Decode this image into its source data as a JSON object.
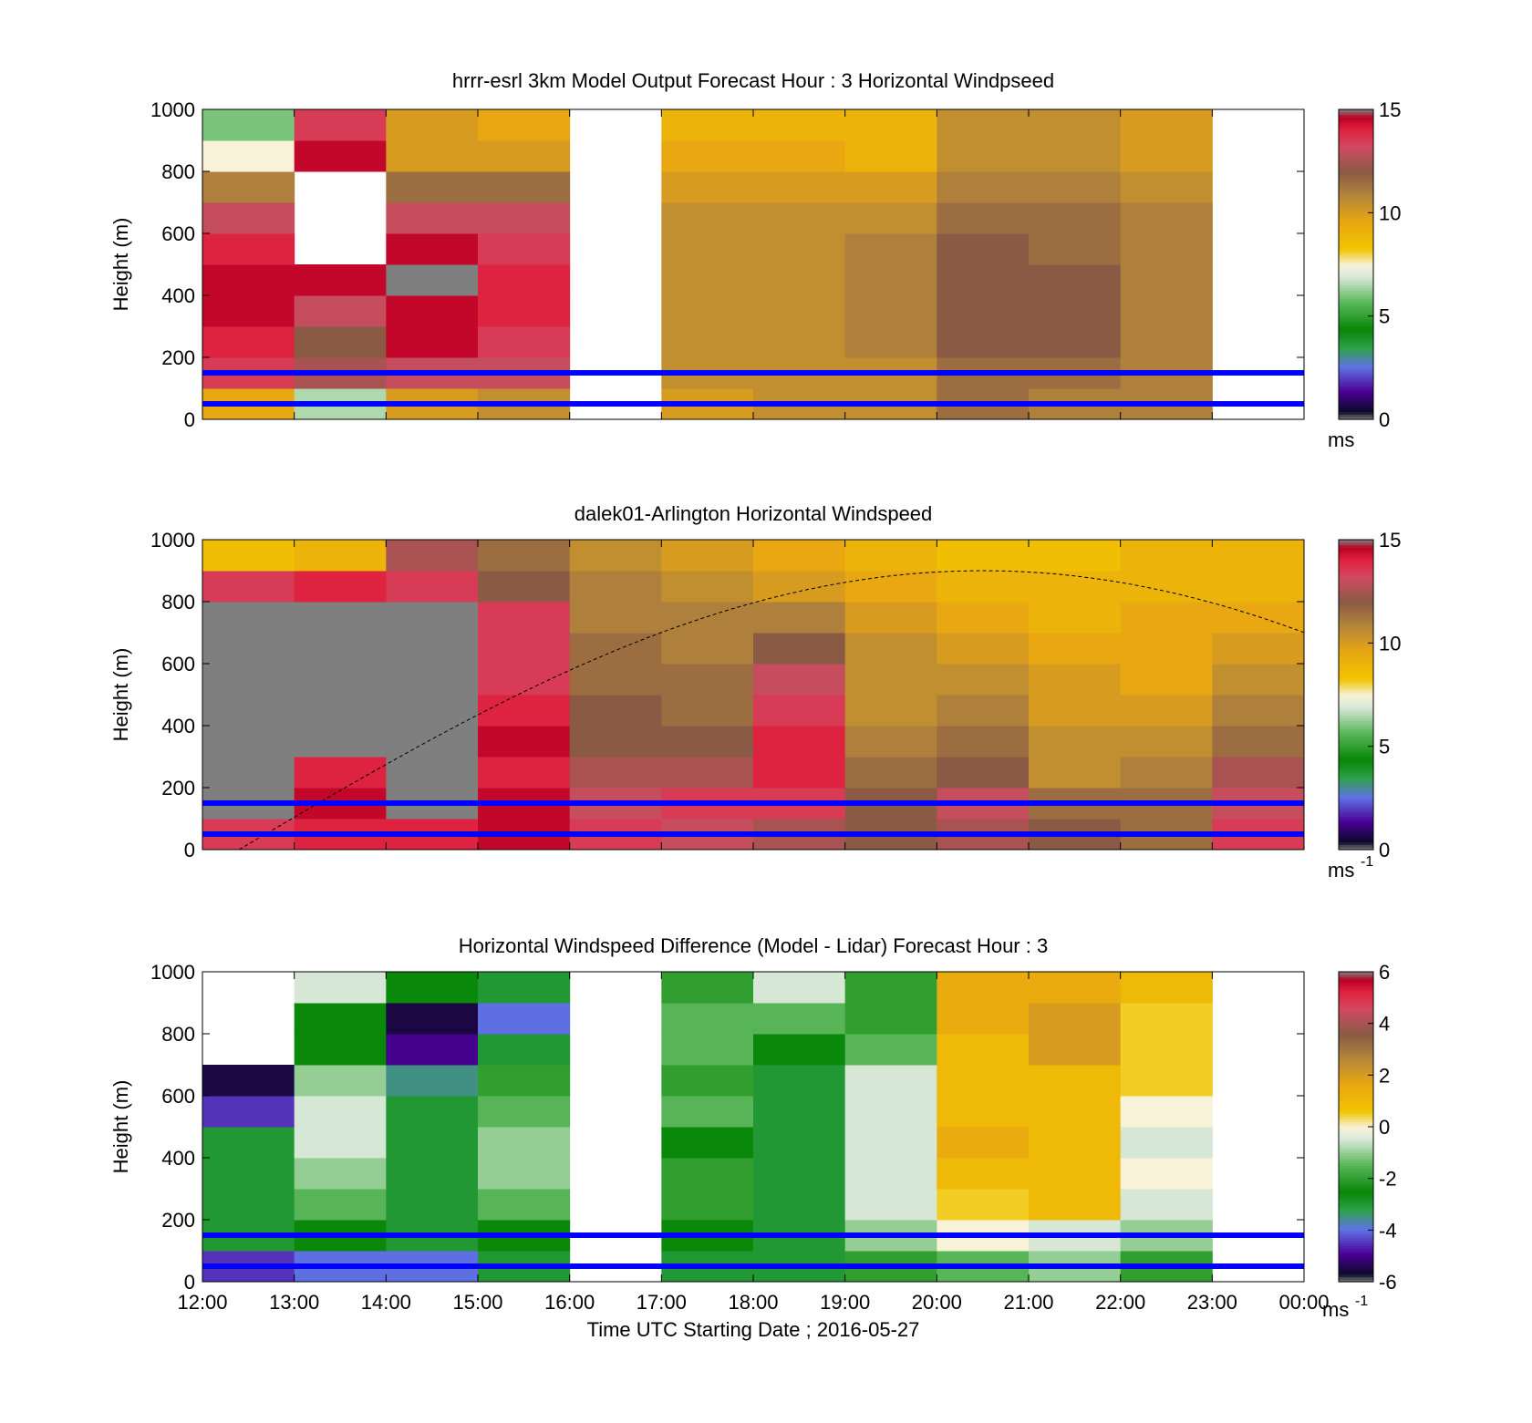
{
  "chart_data": [
    {
      "type": "heatmap",
      "title": "hrrr-esrl 3km Model Output   Forecast Hour : 3 Horizontal Windpseed",
      "ylabel": "Height (m)",
      "ylim": [
        0,
        1000
      ],
      "yticks": [
        "0",
        "200",
        "400",
        "600",
        "800",
        "1000"
      ],
      "xlim": [
        "12:00",
        "00:00"
      ],
      "colorbar": {
        "range": [
          0,
          15
        ],
        "ticks": [
          "0",
          "5",
          "10",
          "15"
        ],
        "unit": "ms"
      },
      "reference_lines_m": [
        50,
        150
      ],
      "heights_m": [
        50,
        150,
        250,
        350,
        450,
        550,
        650,
        750,
        850,
        950
      ],
      "times": [
        "12:00",
        "13:00",
        "14:00",
        "15:00",
        "16:00",
        "17:00",
        "18:00",
        "19:00",
        "20:00",
        "21:00",
        "22:00",
        "23:00"
      ],
      "values": [
        [
          9.5,
          6.5,
          10.0,
          10.5,
          null,
          10.0,
          10.5,
          10.5,
          11.5,
          11.0,
          11.0,
          null
        ],
        [
          13.5,
          12.5,
          13.0,
          13.0,
          null,
          10.5,
          10.5,
          10.5,
          11.5,
          11.5,
          11.0,
          null
        ],
        [
          14.0,
          12.0,
          14.5,
          13.5,
          null,
          10.5,
          10.5,
          11.0,
          12.0,
          12.0,
          11.0,
          null
        ],
        [
          14.5,
          13.0,
          14.5,
          14.0,
          null,
          10.5,
          10.5,
          11.0,
          12.0,
          12.0,
          11.0,
          null
        ],
        [
          14.5,
          14.5,
          15.0,
          14.0,
          null,
          10.5,
          10.5,
          11.0,
          12.0,
          12.0,
          11.0,
          null
        ],
        [
          14.0,
          null,
          14.5,
          13.5,
          null,
          10.5,
          10.5,
          11.0,
          12.0,
          11.5,
          11.0,
          null
        ],
        [
          13.0,
          null,
          13.0,
          13.0,
          null,
          10.5,
          10.5,
          10.5,
          11.5,
          11.5,
          11.0,
          null
        ],
        [
          11.0,
          null,
          11.5,
          11.5,
          null,
          10.0,
          10.0,
          10.0,
          11.0,
          11.0,
          10.5,
          null
        ],
        [
          7.5,
          14.5,
          10.0,
          10.0,
          null,
          9.5,
          9.5,
          9.0,
          10.5,
          10.5,
          10.0,
          null
        ],
        [
          6.0,
          13.5,
          10.0,
          9.5,
          null,
          9.0,
          9.0,
          9.0,
          10.5,
          10.5,
          10.0,
          null
        ]
      ]
    },
    {
      "type": "heatmap",
      "title": "dalek01-Arlington  Horizontal Windspeed",
      "ylabel": "Height (m)",
      "ylim": [
        0,
        1000
      ],
      "yticks": [
        "0",
        "200",
        "400",
        "600",
        "800",
        "1000"
      ],
      "xlim": [
        "12:00",
        "00:00"
      ],
      "colorbar": {
        "range": [
          0,
          15
        ],
        "ticks": [
          "0",
          "5",
          "10",
          "15"
        ],
        "unit": "ms",
        "unit_sup": "-1"
      },
      "reference_lines_m": [
        50,
        150
      ],
      "missing_data_color": "#7f7f7f",
      "heights_m": [
        50,
        150,
        250,
        350,
        450,
        550,
        650,
        750,
        850,
        950
      ],
      "times": [
        "12:00",
        "13:00",
        "14:00",
        "15:00",
        "16:00",
        "17:00",
        "18:00",
        "19:00",
        "20:00",
        "21:00",
        "22:00",
        "23:00"
      ],
      "values": [
        [
          13.5,
          14.0,
          14.0,
          14.5,
          13.5,
          13.0,
          12.5,
          12.0,
          12.5,
          12.0,
          11.5,
          13.5
        ],
        [
          null,
          14.5,
          null,
          14.5,
          13.0,
          13.5,
          13.5,
          12.0,
          13.0,
          11.5,
          11.5,
          13.0
        ],
        [
          null,
          14.0,
          null,
          14.0,
          12.5,
          12.5,
          14.0,
          11.5,
          12.0,
          10.5,
          11.0,
          12.5
        ],
        [
          null,
          null,
          null,
          14.5,
          12.0,
          12.0,
          14.0,
          11.0,
          11.5,
          10.5,
          10.5,
          11.5
        ],
        [
          null,
          null,
          null,
          14.0,
          12.0,
          11.5,
          13.5,
          10.5,
          11.0,
          10.0,
          10.0,
          11.0
        ],
        [
          null,
          null,
          null,
          13.5,
          11.5,
          11.5,
          13.0,
          10.5,
          10.5,
          10.0,
          9.5,
          10.5
        ],
        [
          null,
          null,
          null,
          13.5,
          11.5,
          11.0,
          12.0,
          10.5,
          10.0,
          9.5,
          9.5,
          10.0
        ],
        [
          null,
          null,
          null,
          13.5,
          11.0,
          11.0,
          11.0,
          10.0,
          9.5,
          9.0,
          9.5,
          9.5
        ],
        [
          13.5,
          14.0,
          13.5,
          12.0,
          11.0,
          10.5,
          10.0,
          9.5,
          9.0,
          9.0,
          9.0,
          9.0
        ],
        [
          8.5,
          9.0,
          12.5,
          11.5,
          10.5,
          10.0,
          9.5,
          9.0,
          8.5,
          8.5,
          9.0,
          9.0
        ]
      ]
    },
    {
      "type": "heatmap",
      "title": "Horizontal Windspeed Difference (Model - Lidar) Forecast Hour : 3",
      "ylabel": "Height (m)",
      "xlabel": "Time UTC  Starting Date ; 2016-05-27",
      "ylim": [
        0,
        1000
      ],
      "yticks": [
        "0",
        "200",
        "400",
        "600",
        "800",
        "1000"
      ],
      "xticks": [
        "12:00",
        "13:00",
        "14:00",
        "15:00",
        "16:00",
        "17:00",
        "18:00",
        "19:00",
        "20:00",
        "21:00",
        "22:00",
        "23:00",
        "00:00"
      ],
      "colorbar": {
        "range": [
          -6,
          6
        ],
        "ticks": [
          "-6",
          "-4",
          "-2",
          "0",
          "2",
          "4",
          "6"
        ],
        "unit": "ms",
        "unit_sup": "-1"
      },
      "reference_lines_m": [
        50,
        150
      ],
      "heights_m": [
        50,
        150,
        250,
        350,
        450,
        550,
        650,
        750,
        850,
        950
      ],
      "times": [
        "12:00",
        "13:00",
        "14:00",
        "15:00",
        "16:00",
        "17:00",
        "18:00",
        "19:00",
        "20:00",
        "21:00",
        "22:00",
        "23:00"
      ],
      "values": [
        [
          -4.5,
          -4.0,
          -4.0,
          -3.0,
          null,
          -3.0,
          -3.0,
          -2.0,
          -1.5,
          -1.0,
          -2.0,
          null
        ],
        [
          -3.0,
          -2.5,
          -3.0,
          -2.5,
          null,
          -2.5,
          -3.0,
          -1.0,
          0.0,
          -0.5,
          -1.0,
          null
        ],
        [
          -3.0,
          -1.5,
          -3.0,
          -1.5,
          null,
          -2.0,
          -3.0,
          -0.5,
          0.5,
          1.0,
          -0.5,
          null
        ],
        [
          -3.0,
          -1.0,
          -3.0,
          -1.0,
          null,
          -2.0,
          -3.0,
          -0.5,
          1.0,
          1.0,
          0.0,
          null
        ],
        [
          -3.0,
          -0.5,
          -3.0,
          -1.0,
          null,
          -2.5,
          -3.0,
          -0.5,
          1.5,
          1.0,
          -0.5,
          null
        ],
        [
          -4.5,
          -0.5,
          -3.0,
          -1.5,
          null,
          -1.5,
          -3.0,
          -0.5,
          1.0,
          1.0,
          0.0,
          null
        ],
        [
          -5.5,
          -1.0,
          -3.5,
          -2.0,
          null,
          -2.0,
          -3.0,
          -0.5,
          1.0,
          1.0,
          0.5,
          null
        ],
        [
          null,
          -2.5,
          -5.0,
          -3.0,
          null,
          -1.5,
          -2.5,
          -1.5,
          1.0,
          2.0,
          0.5,
          null
        ],
        [
          null,
          -2.5,
          -5.5,
          -4.0,
          null,
          -1.5,
          -1.5,
          -2.0,
          1.5,
          2.0,
          0.5,
          null
        ],
        [
          null,
          -0.5,
          -2.5,
          -3.0,
          null,
          -2.0,
          -0.5,
          -2.0,
          1.5,
          1.5,
          1.0,
          null
        ]
      ]
    }
  ]
}
